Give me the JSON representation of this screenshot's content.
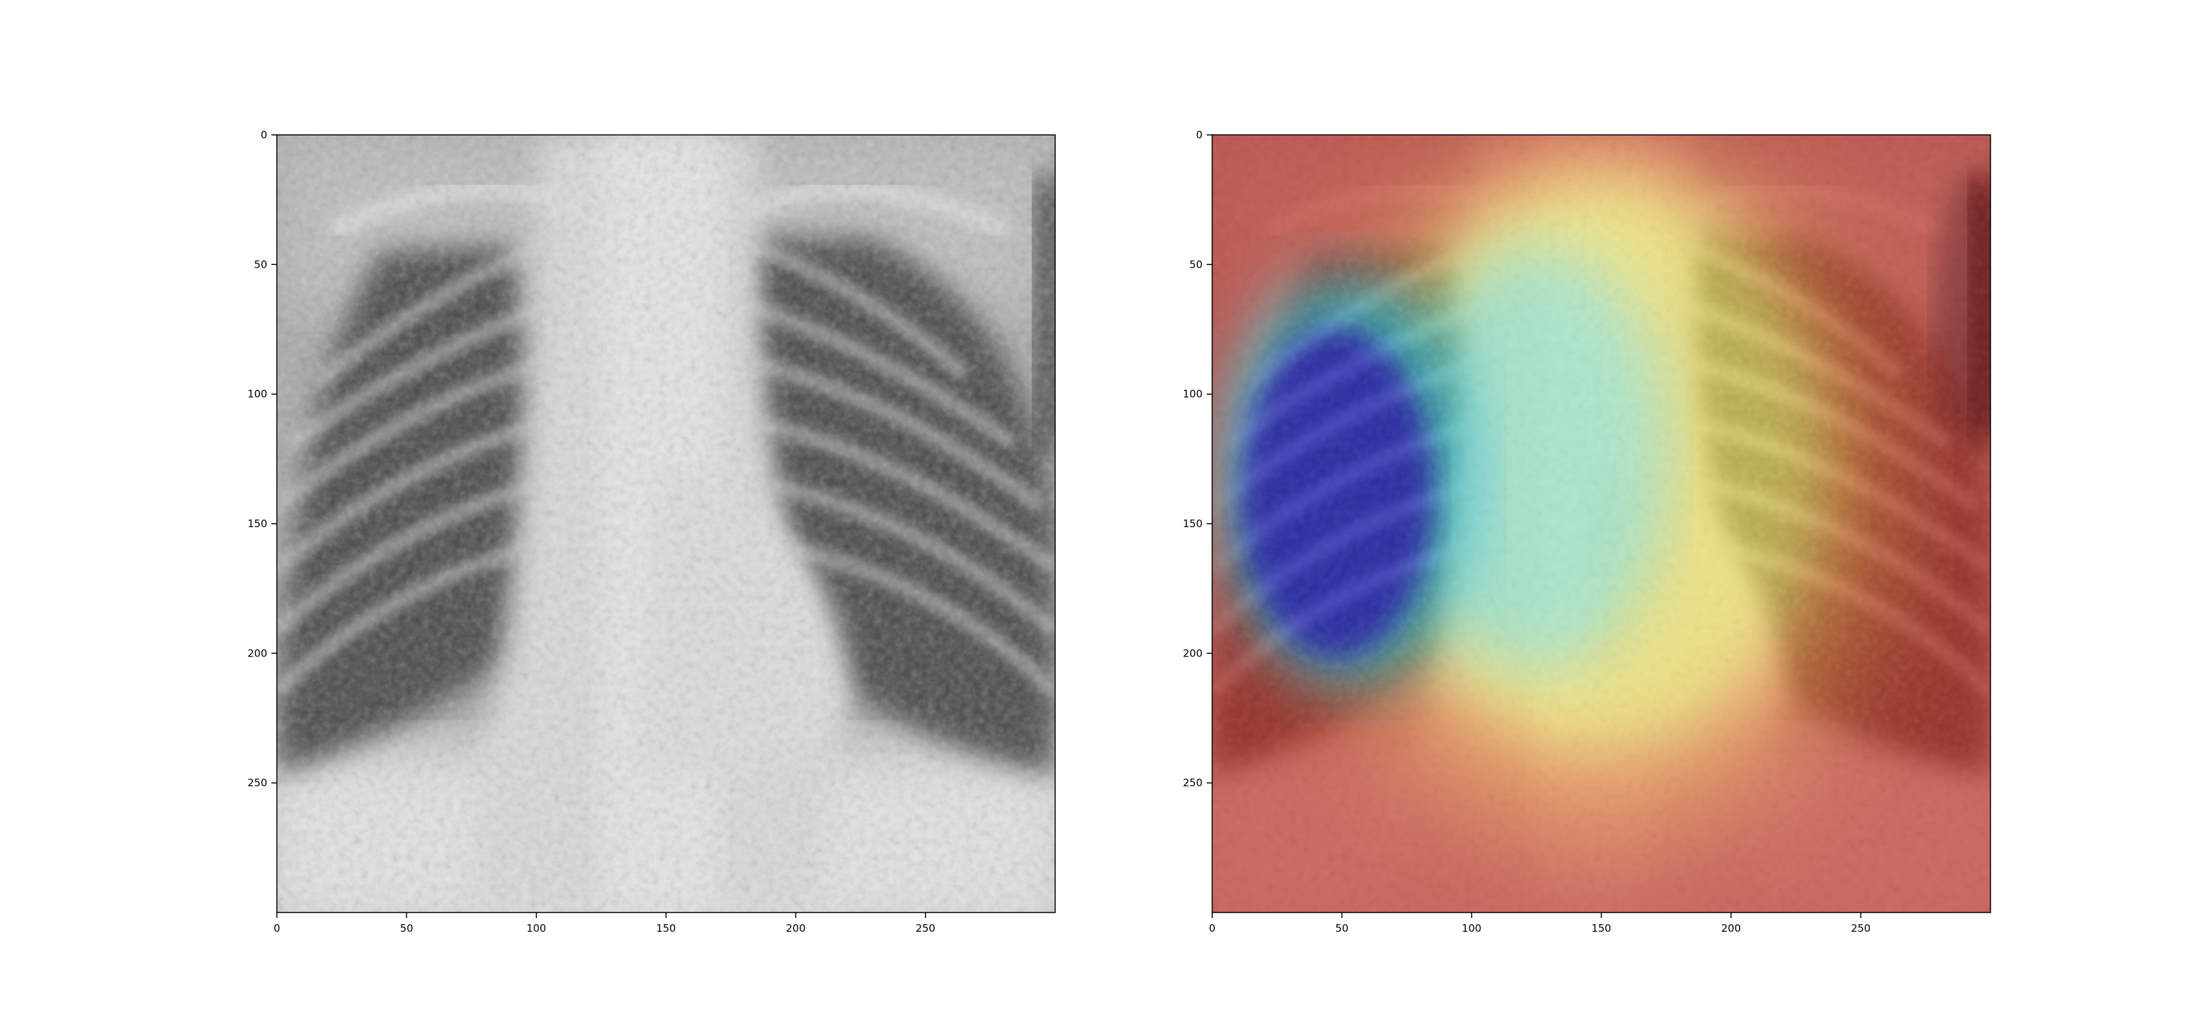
{
  "figure": {
    "panels": [
      {
        "id": "xray",
        "kind": "grayscale chest x-ray",
        "x_ticks": [
          "0",
          "50",
          "100",
          "150",
          "200",
          "250"
        ],
        "y_ticks": [
          "0",
          "50",
          "100",
          "150",
          "200",
          "250"
        ]
      },
      {
        "id": "heatmap",
        "kind": "chest x-ray with jet colormap activation overlay",
        "x_ticks": [
          "0",
          "50",
          "100",
          "150",
          "200",
          "250"
        ],
        "y_ticks": [
          "0",
          "50",
          "100",
          "150",
          "200",
          "250"
        ]
      }
    ],
    "colors": {
      "heat_high": "#c0281e",
      "heat_mid": "#f5e35a",
      "heat_cool": "#8ee6c0",
      "heat_low": "#1f1fd0"
    }
  }
}
